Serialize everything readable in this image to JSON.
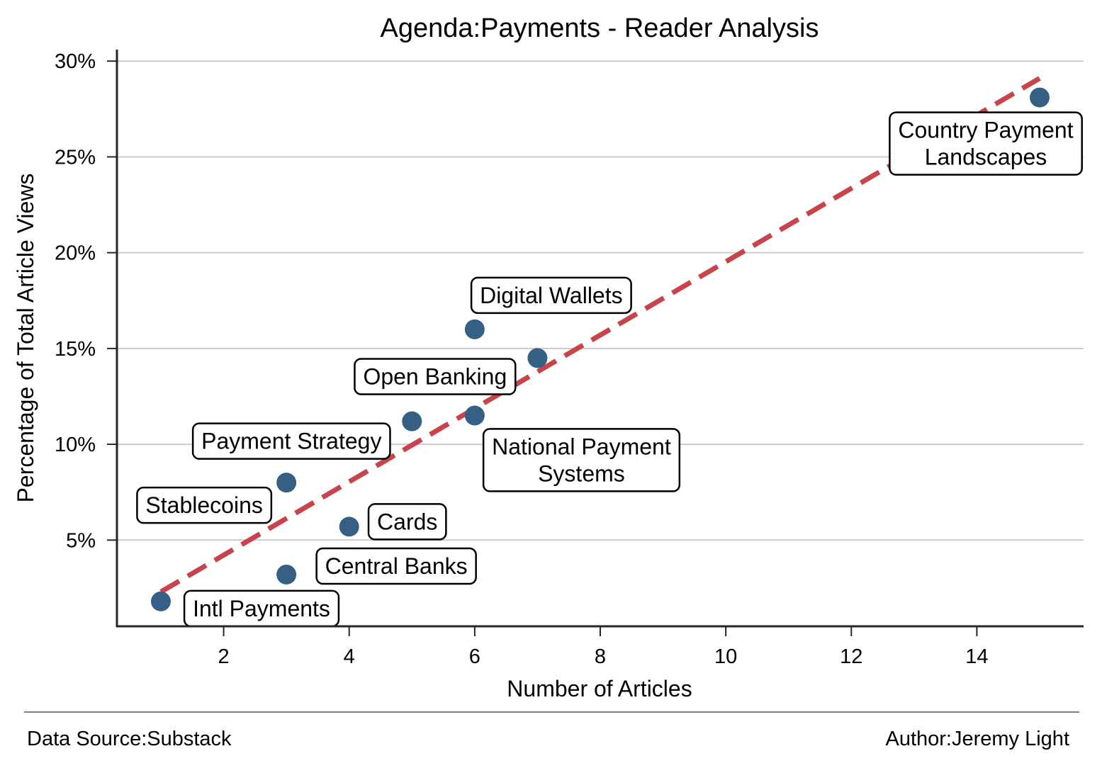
{
  "chart_data": {
    "type": "scatter",
    "title": "Agenda:Payments - Reader Analysis",
    "xlabel": "Number of Articles",
    "ylabel": "Percentage of Total Article Views",
    "xlim": [
      0.3,
      15.7
    ],
    "ylim": [
      0.5,
      30.6
    ],
    "xticks": [
      2,
      4,
      6,
      8,
      10,
      12,
      14
    ],
    "yticks": [
      5,
      10,
      15,
      20,
      25,
      30
    ],
    "ytick_suffix": "%",
    "grid": "horizontal",
    "point_color": "#355f85",
    "trend_color": "#c8434b",
    "trendline": {
      "x": [
        1,
        15
      ],
      "y": [
        2.3,
        29.1
      ]
    },
    "points": [
      {
        "label": "Intl Payments",
        "x": 1,
        "y": 1.8
      },
      {
        "label": "Central Banks",
        "x": 3,
        "y": 3.2
      },
      {
        "label": "Stablecoins",
        "x": 3,
        "y": 8.0
      },
      {
        "label": "Cards",
        "x": 4,
        "y": 5.7
      },
      {
        "label": "Payment Strategy",
        "x": 5,
        "y": 11.2
      },
      {
        "label": "Open Banking",
        "x": 6,
        "y": 11.5
      },
      {
        "label": "Digital Wallets",
        "x": 6,
        "y": 16.0
      },
      {
        "label": "National Payment Systems",
        "x": 7,
        "y": 14.5
      },
      {
        "label": "Country Payment Landscapes",
        "x": 15,
        "y": 28.1
      }
    ]
  },
  "footer": {
    "source": "Data Source:Substack",
    "author": "Author:Jeremy Light"
  }
}
